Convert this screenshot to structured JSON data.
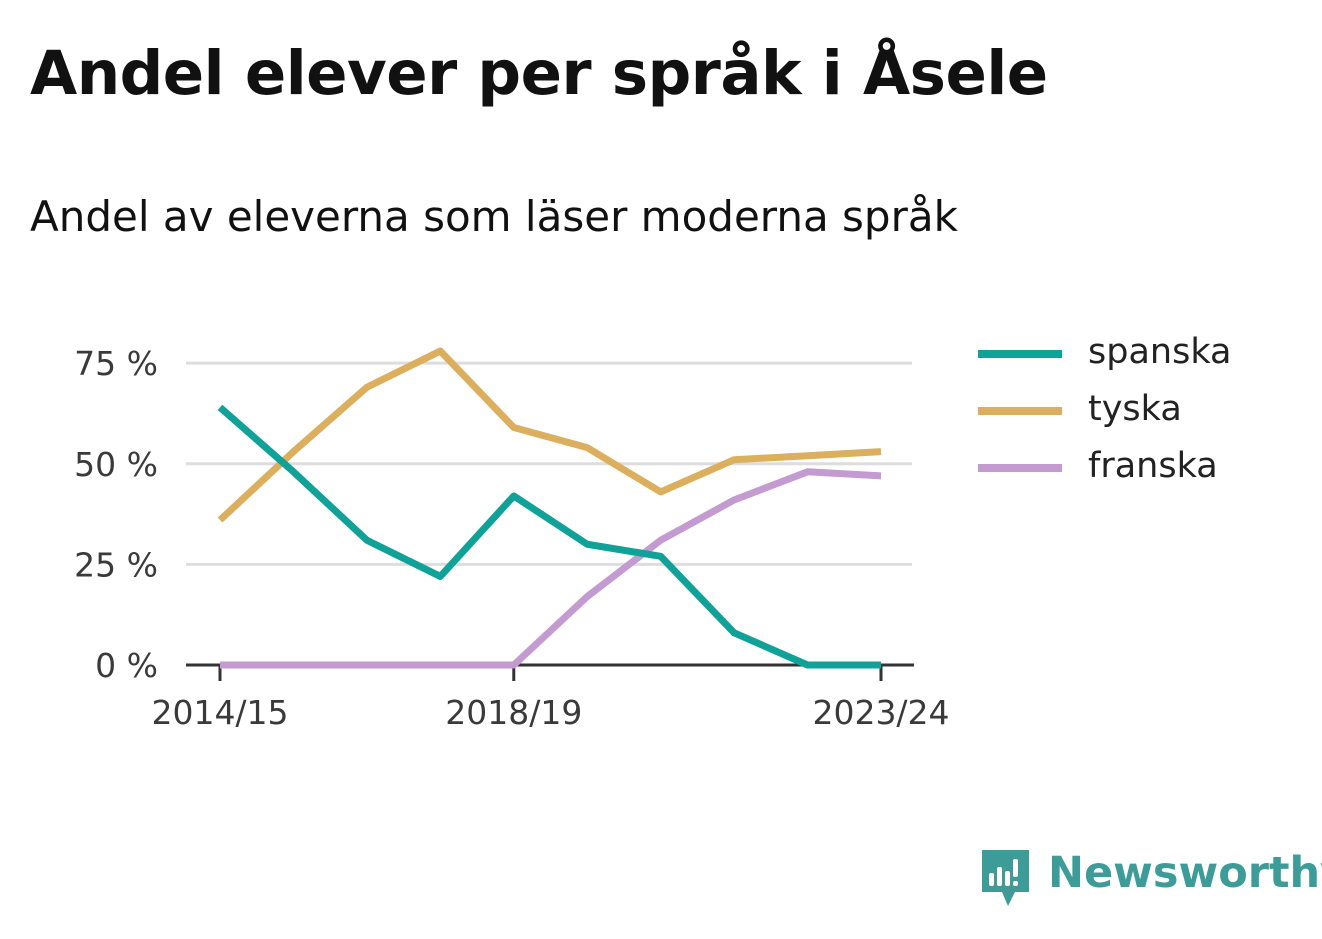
{
  "title": "Andel elever per språk i Åsele",
  "subtitle": "Andel av eleverna som läser moderna språk",
  "brand": {
    "name": "Newsworthy",
    "icon": "newsworthy-logo-icon",
    "color": "#3e9c98"
  },
  "chart_data": {
    "type": "line",
    "x": [
      "2014/15",
      "2015/16",
      "2016/17",
      "2017/18",
      "2018/19",
      "2019/20",
      "2020/21",
      "2021/22",
      "2022/23",
      "2023/24"
    ],
    "x_tick_labels": [
      "2014/15",
      "2018/19",
      "2023/24"
    ],
    "y_tick_labels": [
      "0 %",
      "25 %",
      "50 %",
      "75 %"
    ],
    "y_ticks": [
      0,
      25,
      50,
      75
    ],
    "ylim": [
      0,
      80
    ],
    "grid": true,
    "legend_position": "right",
    "series": [
      {
        "name": "spanska",
        "color": "#10a198",
        "values": [
          64,
          48,
          31,
          22,
          42,
          30,
          27,
          8,
          0,
          0
        ]
      },
      {
        "name": "tyska",
        "color": "#dbaf5e",
        "values": [
          36,
          53,
          69,
          78,
          59,
          54,
          43,
          51,
          52,
          53
        ]
      },
      {
        "name": "franska",
        "color": "#c39bd0",
        "values": [
          0,
          0,
          0,
          0,
          0,
          17,
          31,
          41,
          48,
          47
        ]
      }
    ]
  }
}
